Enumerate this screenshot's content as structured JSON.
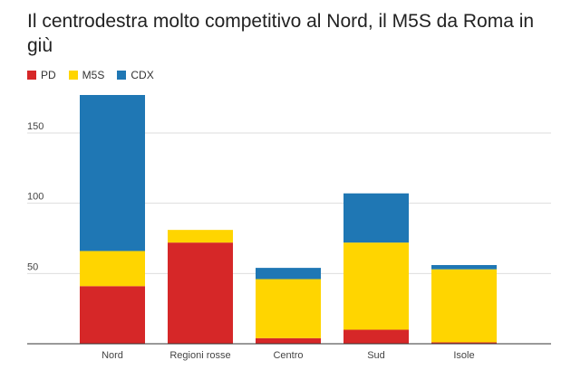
{
  "chart_data": {
    "type": "bar",
    "stacked": true,
    "title": "Il centrodestra molto competitivo al Nord, il M5S da Roma in giù",
    "xlabel": "",
    "ylabel": "",
    "categories": [
      "Nord",
      "Regioni rosse",
      "Centro",
      "Sud",
      "Isole"
    ],
    "series": [
      {
        "name": "PD",
        "color": "#d62728",
        "values": [
          41,
          72,
          4,
          10,
          1
        ]
      },
      {
        "name": "M5S",
        "color": "#ffd500",
        "values": [
          25,
          9,
          42,
          62,
          52
        ]
      },
      {
        "name": "CDX",
        "color": "#1f77b4",
        "values": [
          111,
          0,
          8,
          35,
          3
        ]
      }
    ],
    "ylim": [
      0,
      177
    ],
    "yticks": [
      50,
      100,
      150
    ],
    "grid": true,
    "legend_position": "top-left"
  }
}
